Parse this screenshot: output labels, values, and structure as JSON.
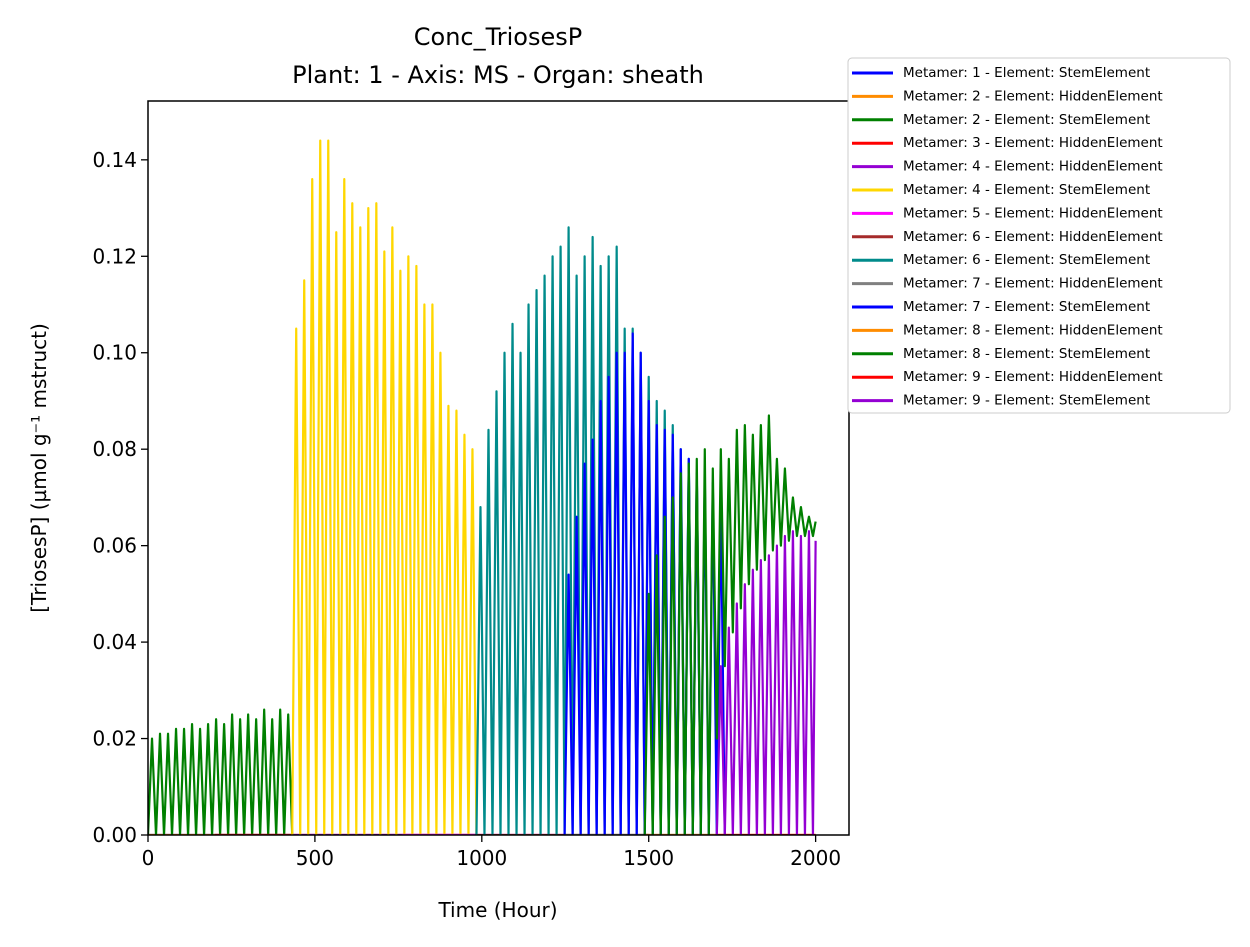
{
  "chart_data": {
    "type": "line",
    "title": "Conc_TriosesP",
    "subtitle": "Plant: 1 - Axis: MS - Organ: sheath",
    "x_label": "Time (Hour)",
    "y_label": "[TriosesP] (µmol g⁻¹ mstruct)",
    "xlim": [
      0,
      2100
    ],
    "ylim": [
      0,
      0.1522
    ],
    "xticks": [
      0,
      500,
      1000,
      1500,
      2000
    ],
    "yticks": [
      {
        "value": 0,
        "label": "0.00"
      },
      {
        "value": 0.02,
        "label": "0.02"
      },
      {
        "value": 0.04,
        "label": "0.04"
      },
      {
        "value": 0.06,
        "label": "0.06"
      },
      {
        "value": 0.08,
        "label": "0.08"
      },
      {
        "value": 0.1,
        "label": "0.10"
      },
      {
        "value": 0.12,
        "label": "0.12"
      },
      {
        "value": 0.14,
        "label": "0.14"
      }
    ],
    "legend": "outside-upper-right",
    "series": [
      {
        "name": "Metamer: 1 - Element: StemElement",
        "color": "#0000ff",
        "x": [
          0,
          432
        ],
        "values": [
          0,
          0
        ]
      },
      {
        "name": "Metamer: 2 - Element: HiddenElement",
        "color": "#ff8c00",
        "x": [
          0,
          432
        ],
        "values": [
          0,
          0
        ]
      },
      {
        "name": "Metamer: 2 - Element: StemElement",
        "color": "#008000",
        "x": [
          0,
          12,
          24,
          36,
          48,
          60,
          72,
          84,
          96,
          108,
          120,
          132,
          144,
          156,
          168,
          180,
          192,
          204,
          216,
          228,
          240,
          252,
          264,
          276,
          288,
          300,
          312,
          324,
          336,
          348,
          360,
          372,
          384,
          396,
          408,
          420,
          432
        ],
        "values": [
          0,
          0.02,
          0,
          0.021,
          0,
          0.021,
          0,
          0.022,
          0,
          0.022,
          0,
          0.023,
          0,
          0.022,
          0,
          0.023,
          0,
          0.024,
          0,
          0.023,
          0,
          0.025,
          0,
          0.024,
          0,
          0.025,
          0,
          0.024,
          0,
          0.026,
          0,
          0.024,
          0,
          0.026,
          0,
          0.025,
          0
        ]
      },
      {
        "name": "Metamer: 3 - Element: HiddenElement",
        "color": "#ff0000",
        "x": [
          200,
          984
        ],
        "values": [
          0,
          0
        ]
      },
      {
        "name": "Metamer: 4 - Element: HiddenElement",
        "color": "#9400d3",
        "x": [
          430,
          984
        ],
        "values": [
          0,
          0
        ]
      },
      {
        "name": "Metamer: 4 - Element: StemElement",
        "color": "#ffd700",
        "x": [
          432,
          444,
          456,
          468,
          480,
          492,
          504,
          516,
          528,
          540,
          552,
          564,
          576,
          588,
          600,
          612,
          624,
          636,
          648,
          660,
          672,
          684,
          696,
          708,
          720,
          732,
          744,
          756,
          768,
          780,
          792,
          804,
          816,
          828,
          840,
          852,
          864,
          876,
          888,
          900,
          912,
          924,
          936,
          948,
          960,
          972,
          984
        ],
        "values": [
          0,
          0.105,
          0,
          0.115,
          0,
          0.136,
          0,
          0.144,
          0,
          0.144,
          0,
          0.125,
          0,
          0.136,
          0,
          0.131,
          0,
          0.126,
          0,
          0.13,
          0,
          0.131,
          0,
          0.121,
          0,
          0.126,
          0,
          0.117,
          0,
          0.12,
          0,
          0.118,
          0,
          0.11,
          0,
          0.11,
          0,
          0.1,
          0,
          0.089,
          0,
          0.088,
          0,
          0.083,
          0,
          0.08,
          0
        ]
      },
      {
        "name": "Metamer: 5 - Element: HiddenElement",
        "color": "#ff00ff",
        "x": [
          760,
          1250
        ],
        "values": [
          0,
          0
        ]
      },
      {
        "name": "Metamer: 6 - Element: HiddenElement",
        "color": "#a52a2a",
        "x": [
          980,
          1500
        ],
        "values": [
          0,
          0
        ]
      },
      {
        "name": "Metamer: 6 - Element: StemElement",
        "color": "#008b8b",
        "x": [
          984,
          996,
          1008,
          1020,
          1032,
          1044,
          1056,
          1068,
          1080,
          1092,
          1104,
          1116,
          1128,
          1140,
          1152,
          1164,
          1176,
          1188,
          1200,
          1212,
          1224,
          1236,
          1248,
          1260,
          1272,
          1284,
          1296,
          1308,
          1320,
          1332,
          1344,
          1356,
          1368,
          1380,
          1392,
          1404,
          1416,
          1428,
          1440,
          1452,
          1464,
          1476,
          1488,
          1500,
          1512,
          1524,
          1536,
          1548,
          1560,
          1572,
          1584,
          1596,
          1608,
          1620,
          1632,
          1644,
          1656
        ],
        "values": [
          0,
          0.068,
          0,
          0.084,
          0,
          0.092,
          0,
          0.1,
          0,
          0.106,
          0,
          0.1,
          0,
          0.11,
          0,
          0.113,
          0,
          0.116,
          0,
          0.12,
          0,
          0.122,
          0,
          0.126,
          0,
          0.116,
          0,
          0.12,
          0,
          0.124,
          0,
          0.118,
          0,
          0.12,
          0,
          0.122,
          0,
          0.105,
          0,
          0.105,
          0,
          0.1,
          0,
          0.095,
          0,
          0.09,
          0,
          0.088,
          0,
          0.085,
          0,
          0.08,
          0,
          0.078,
          0,
          0.075,
          0
        ]
      },
      {
        "name": "Metamer: 7 - Element: HiddenElement",
        "color": "#808080",
        "x": [
          1250,
          1700
        ],
        "values": [
          0,
          0
        ]
      },
      {
        "name": "Metamer: 7 - Element: StemElement",
        "color": "#0000ff",
        "x": [
          1248,
          1260,
          1272,
          1284,
          1296,
          1308,
          1320,
          1332,
          1344,
          1356,
          1368,
          1380,
          1392,
          1404,
          1416,
          1428,
          1440,
          1452,
          1464,
          1476,
          1488,
          1500,
          1512,
          1524,
          1536,
          1548,
          1560,
          1572,
          1584,
          1596,
          1608,
          1620,
          1632,
          1644,
          1656,
          1668,
          1680,
          1692,
          1704,
          1716,
          1728
        ],
        "values": [
          0,
          0.054,
          0,
          0.066,
          0,
          0.077,
          0,
          0.082,
          0,
          0.09,
          0,
          0.095,
          0,
          0.1,
          0,
          0.1,
          0,
          0.104,
          0,
          0.1,
          0,
          0.09,
          0,
          0.085,
          0,
          0.084,
          0,
          0.083,
          0,
          0.08,
          0,
          0.078,
          0,
          0.075,
          0,
          0.074,
          0,
          0.073,
          0,
          0.07,
          0
        ]
      },
      {
        "name": "Metamer: 8 - Element: HiddenElement",
        "color": "#ff8c00",
        "x": [
          1490,
          2000
        ],
        "values": [
          0,
          0
        ]
      },
      {
        "name": "Metamer: 8 - Element: StemElement",
        "color": "#008000",
        "x": [
          1488,
          1500,
          1512,
          1524,
          1536,
          1548,
          1560,
          1572,
          1584,
          1596,
          1608,
          1620,
          1632,
          1644,
          1656,
          1668,
          1680,
          1692,
          1704,
          1716,
          1728,
          1740,
          1752,
          1764,
          1776,
          1788,
          1800,
          1812,
          1824,
          1836,
          1848,
          1860,
          1872,
          1884,
          1896,
          1908,
          1920,
          1932,
          1944,
          1956,
          1968,
          1980,
          1992,
          2000
        ],
        "values": [
          0,
          0.05,
          0,
          0.058,
          0,
          0.066,
          0,
          0.07,
          0,
          0.075,
          0,
          0.077,
          0,
          0.078,
          0,
          0.08,
          0,
          0.076,
          0.02,
          0.08,
          0.035,
          0.078,
          0.042,
          0.084,
          0.047,
          0.085,
          0.052,
          0.083,
          0.055,
          0.085,
          0.057,
          0.087,
          0.059,
          0.078,
          0.06,
          0.076,
          0.061,
          0.07,
          0.062,
          0.068,
          0.062,
          0.066,
          0.062,
          0.065
        ]
      },
      {
        "name": "Metamer: 9 - Element: HiddenElement",
        "color": "#ff0000",
        "x": [
          1700,
          2000
        ],
        "values": [
          0,
          0
        ]
      },
      {
        "name": "Metamer: 9 - Element: StemElement",
        "color": "#9400d3",
        "x": [
          1704,
          1716,
          1728,
          1740,
          1752,
          1764,
          1776,
          1788,
          1800,
          1812,
          1824,
          1836,
          1848,
          1860,
          1872,
          1884,
          1896,
          1908,
          1920,
          1932,
          1944,
          1956,
          1968,
          1980,
          1992,
          2000
        ],
        "values": [
          0,
          0.035,
          0,
          0.043,
          0,
          0.048,
          0,
          0.052,
          0,
          0.055,
          0,
          0.057,
          0,
          0.058,
          0,
          0.06,
          0,
          0.062,
          0,
          0.063,
          0,
          0.062,
          0,
          0.063,
          0,
          0.061
        ]
      }
    ]
  }
}
